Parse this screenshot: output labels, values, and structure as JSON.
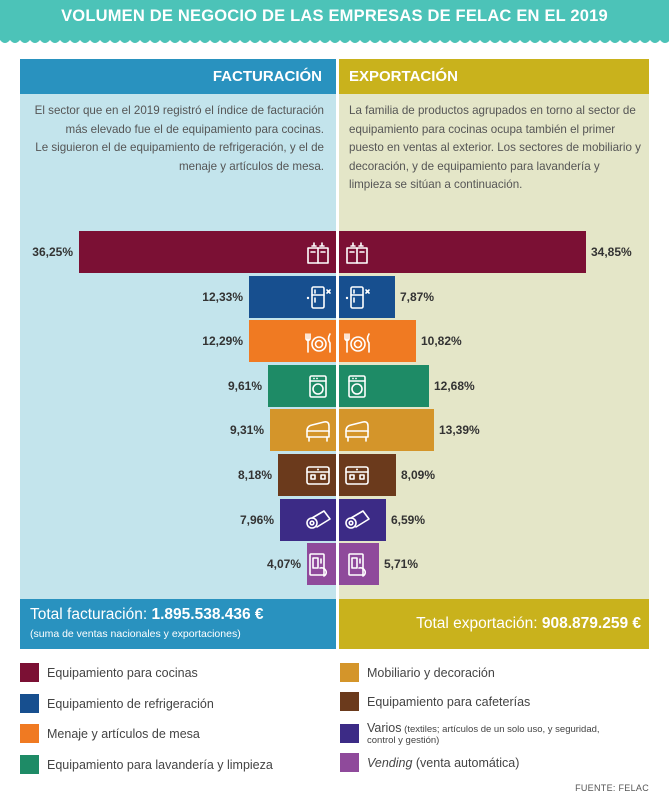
{
  "title": "VOLUMEN DE NEGOCIO DE LAS EMPRESAS DE FELAC EN EL 2019",
  "header": {
    "left": "FACTURACIÓN",
    "right": "EXPORTACIÓN"
  },
  "description": {
    "left_line1": "El sector que en el 2019 registró el índice de facturación más elevado fue el de equipamiento para cocinas.",
    "left_line2": "Le siguieron el de equipamiento de refrigeración, y el de menaje y artículos de mesa.",
    "right": "La familia de productos agrupados en torno al sector de equipamiento para cocinas ocupa también el primer puesto en ventas al exterior. Los sectores de mobiliario y decoración, y de equipamiento para lavandería y limpieza se sitúan a continuación."
  },
  "chart_data": {
    "type": "bar",
    "orientation": "horizontal-butterfly",
    "categories": [
      "Equipamiento para cocinas",
      "Equipamiento de refrigeración",
      "Menaje y artículos de mesa",
      "Equipamiento para lavandería y limpieza",
      "Mobiliario y decoración",
      "Equipamiento para cafeterías",
      "Varios",
      "Vending"
    ],
    "series": [
      {
        "name": "FACTURACIÓN",
        "values": [
          36.25,
          12.33,
          12.29,
          9.61,
          9.31,
          8.18,
          7.96,
          4.07
        ],
        "labels": [
          "36,25%",
          "12,33%",
          "12,29%",
          "9,61%",
          "9,31%",
          "8,18%",
          "7,96%",
          "4,07%"
        ]
      },
      {
        "name": "EXPORTACIÓN",
        "values": [
          34.85,
          7.87,
          10.82,
          12.68,
          13.39,
          8.09,
          6.59,
          5.71
        ],
        "labels": [
          "34,85%",
          "7,87%",
          "10,82%",
          "12,68%",
          "13,39%",
          "8,09%",
          "6,59%",
          "5,71%"
        ]
      }
    ],
    "colors": [
      "#7b1034",
      "#174f8f",
      "#f07a22",
      "#1e8b66",
      "#d4952a",
      "#6b3a1c",
      "#3c2b86",
      "#8f4a9b"
    ],
    "icons": [
      "oven-icon",
      "fridge-icon",
      "tableware-icon",
      "washer-icon",
      "sofa-icon",
      "coffee-machine-icon",
      "paper-roll-icon",
      "vending-icon"
    ],
    "xlim": [
      0,
      40
    ]
  },
  "totals": {
    "left_label": "Total facturación: ",
    "left_value": "1.895.538.436 €",
    "left_note": "(suma de ventas nacionales y exportaciones)",
    "right_label": "Total exportación: ",
    "right_value": "908.879.259 €"
  },
  "legend": {
    "cocinas": "Equipamiento para cocinas",
    "refrigeracion": "Equipamiento de refrigeración",
    "menaje": "Menaje y artículos de mesa",
    "lavanderia": "Equipamiento para lavandería y limpieza",
    "mobiliario": "Mobiliario y decoración",
    "cafeterias": "Equipamiento para cafeterías",
    "varios": "Varios",
    "varios_note1": " (textiles; artículos de un solo uso, y seguridad,",
    "varios_note2": "control y gestión)",
    "vending": "Vending",
    "vending_note": " (venta automática)"
  },
  "source": "FUENTE: FELAC"
}
